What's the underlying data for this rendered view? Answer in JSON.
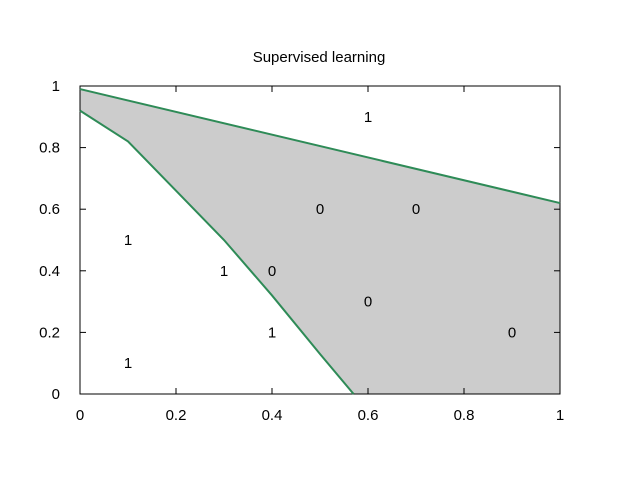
{
  "chart_data": {
    "type": "scatter",
    "title": "Supervised learning",
    "xlabel": "",
    "ylabel": "",
    "xlim": [
      0,
      1
    ],
    "ylim": [
      0,
      1
    ],
    "xticks": [
      "0",
      "0.2",
      "0.4",
      "0.6",
      "0.8",
      "1"
    ],
    "yticks": [
      "0",
      "0.2",
      "0.4",
      "0.6",
      "0.8",
      "1"
    ],
    "grid": false,
    "region_color": "#cccccc",
    "boundary_color": "#2e8b57",
    "boundaries": [
      {
        "points": [
          {
            "x": 0,
            "y": 0.99
          },
          {
            "x": 1,
            "y": 0.62
          }
        ]
      },
      {
        "points": [
          {
            "x": 0,
            "y": 0.92
          },
          {
            "x": 0.1,
            "y": 0.82
          },
          {
            "x": 0.2,
            "y": 0.66
          },
          {
            "x": 0.3,
            "y": 0.5
          },
          {
            "x": 0.4,
            "y": 0.32
          },
          {
            "x": 0.5,
            "y": 0.13
          },
          {
            "x": 0.57,
            "y": 0
          }
        ]
      }
    ],
    "points": [
      {
        "x": 0.6,
        "y": 0.9,
        "label": "1"
      },
      {
        "x": 0.5,
        "y": 0.6,
        "label": "0"
      },
      {
        "x": 0.7,
        "y": 0.6,
        "label": "0"
      },
      {
        "x": 0.1,
        "y": 0.5,
        "label": "1"
      },
      {
        "x": 0.3,
        "y": 0.4,
        "label": "1"
      },
      {
        "x": 0.4,
        "y": 0.4,
        "label": "0"
      },
      {
        "x": 0.6,
        "y": 0.3,
        "label": "0"
      },
      {
        "x": 0.4,
        "y": 0.2,
        "label": "1"
      },
      {
        "x": 0.9,
        "y": 0.2,
        "label": "0"
      },
      {
        "x": 0.1,
        "y": 0.1,
        "label": "1"
      }
    ]
  }
}
